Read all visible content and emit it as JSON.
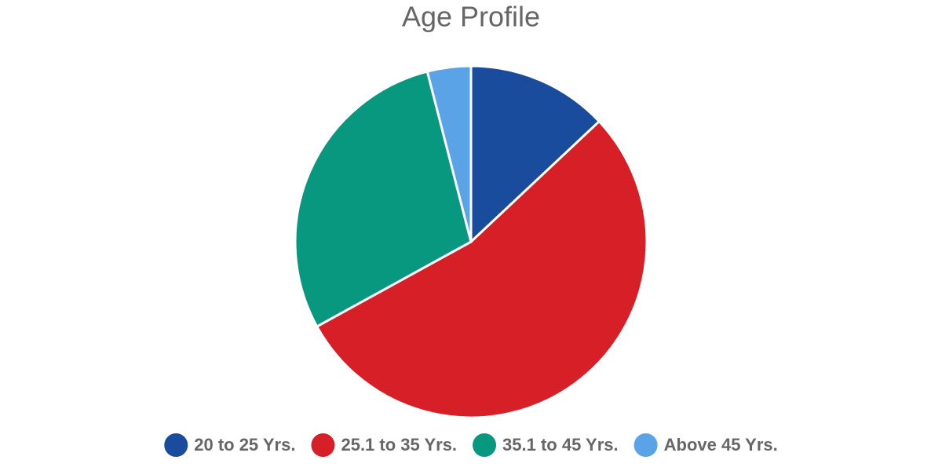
{
  "chart_data": {
    "type": "pie",
    "title": "Age Profile",
    "categories": [
      "20 to 25 Yrs.",
      "25.1 to 35 Yrs.",
      "35.1 to 45 Yrs.",
      "Above 45 Yrs."
    ],
    "values": [
      13,
      54,
      29,
      4
    ],
    "colors": [
      "#1a4c9e",
      "#d61f26",
      "#08987f",
      "#5aa3e6"
    ],
    "legend": "bottom"
  }
}
